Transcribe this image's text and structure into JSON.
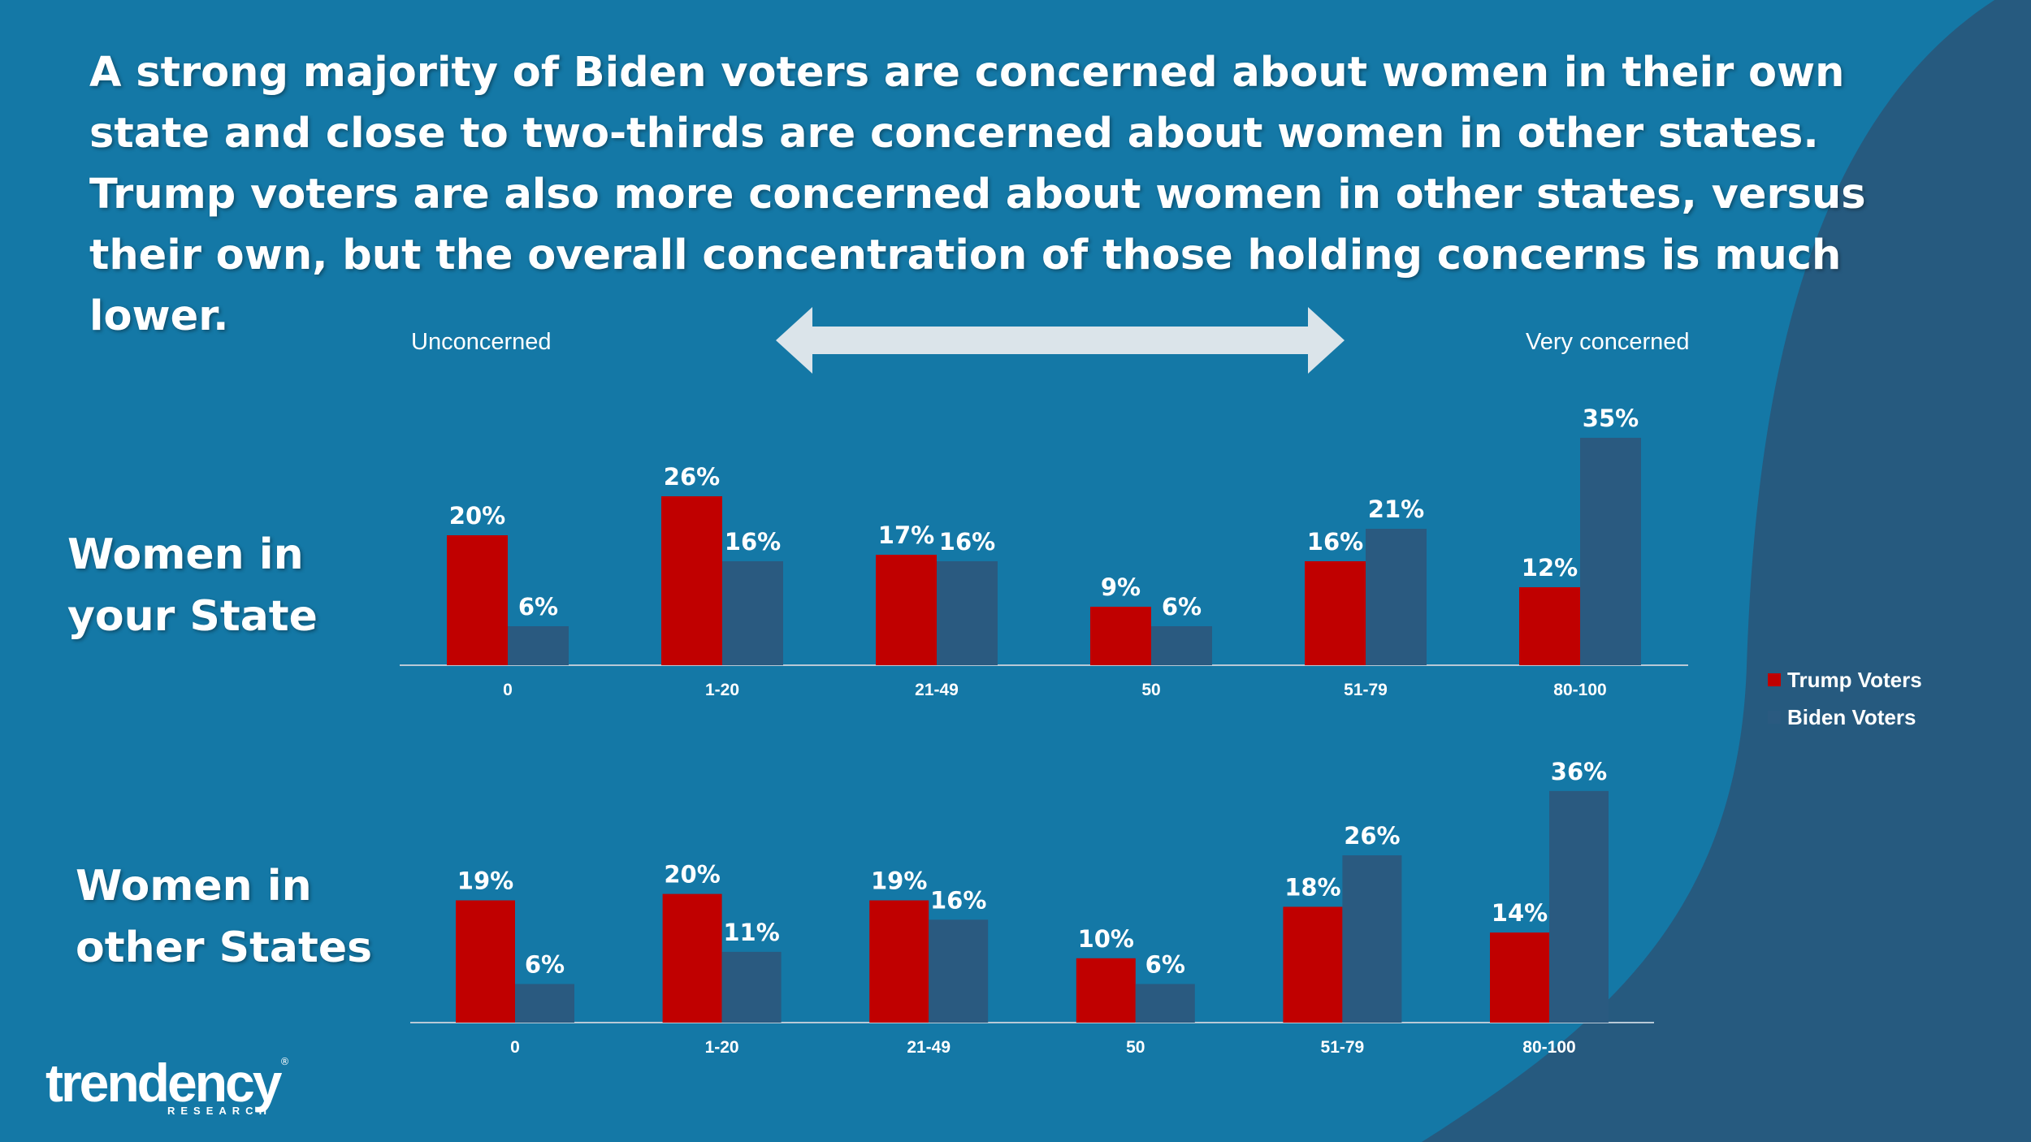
{
  "headline": "A strong majority of Biden voters are concerned about women in their own state and close to two-thirds are concerned about women in other states. Trump voters are also more concerned about women in other states, versus their own, but the overall concentration of those holding concerns is much lower.",
  "scale": {
    "left_label": "Unconcerned",
    "right_label": "Very concerned"
  },
  "colors": {
    "background": "#1478a6",
    "curve": "#265a7f",
    "trump": "#c00000",
    "biden": "#2a5a80",
    "arrow": "#dbe4ea"
  },
  "chart_data": [
    {
      "type": "bar",
      "title": "Women in your State",
      "categories": [
        "0",
        "1-20",
        "21-49",
        "50",
        "51-79",
        "80-100"
      ],
      "series": [
        {
          "name": "Trump Voters",
          "values": [
            20,
            26,
            17,
            9,
            16,
            12
          ],
          "labels": [
            "20%",
            "26%",
            "17%",
            "9%",
            "16%",
            "12%"
          ]
        },
        {
          "name": "Biden Voters",
          "values": [
            6,
            16,
            16,
            6,
            21,
            35
          ],
          "labels": [
            "6%",
            "16%",
            "16%",
            "6%",
            "21%",
            "35%"
          ]
        }
      ],
      "unit": "%",
      "ylim": [
        0,
        40
      ]
    },
    {
      "type": "bar",
      "title": "Women in other States",
      "categories": [
        "0",
        "1-20",
        "21-49",
        "50",
        "51-79",
        "80-100"
      ],
      "series": [
        {
          "name": "Trump Voters",
          "values": [
            19,
            20,
            19,
            10,
            18,
            14
          ],
          "labels": [
            "19%",
            "20%",
            "19%",
            "10%",
            "18%",
            "14%"
          ]
        },
        {
          "name": "Biden Voters",
          "values": [
            6,
            11,
            16,
            6,
            26,
            36
          ],
          "labels": [
            "6%",
            "11%",
            "16%",
            "6%",
            "26%",
            "36%"
          ]
        }
      ],
      "unit": "%",
      "ylim": [
        0,
        40
      ]
    }
  ],
  "rows": [
    {
      "line1": "Women in",
      "line2": "your State"
    },
    {
      "line1": "Women in",
      "line2": "other States"
    }
  ],
  "legend": [
    {
      "name": "Trump Voters",
      "color": "#c00000"
    },
    {
      "name": "Biden Voters",
      "color": "#2a5a80"
    }
  ],
  "logo": {
    "word": "trendency",
    "sub": "RESEARCH",
    "tm": "®"
  }
}
